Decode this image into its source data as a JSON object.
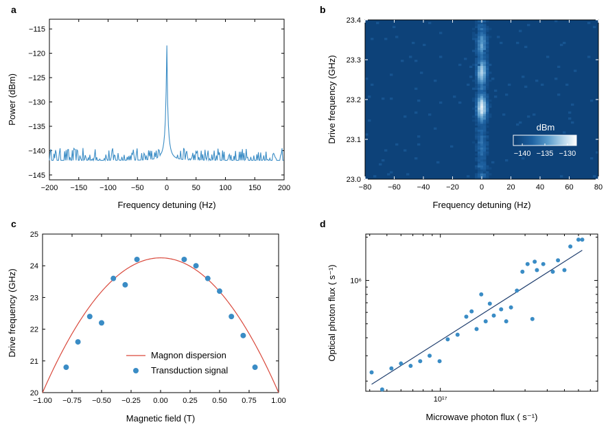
{
  "chart_data": [
    {
      "panel": "a",
      "type": "line",
      "xlabel": "Frequency detuning (Hz)",
      "ylabel": "Power (dBm)",
      "xlim": [
        -200,
        200
      ],
      "ylim": [
        -146,
        -113
      ],
      "xticks": [
        -200,
        -150,
        -100,
        -50,
        0,
        50,
        100,
        150,
        200
      ],
      "yticks": [
        -145,
        -140,
        -135,
        -130,
        -125,
        -120,
        -115
      ],
      "color": "#3a8cc5",
      "series": [
        {
          "peak_center_hz": 0,
          "peak_level_dbm": -117.6,
          "noise_floor_dbm": -142,
          "noise_amplitude_db": 1.6
        }
      ]
    },
    {
      "panel": "b",
      "type": "heatmap",
      "xlabel": "Frequency detuning (Hz)",
      "ylabel": "Drive frequency (GHz)",
      "xlim": [
        -80,
        80
      ],
      "ylim": [
        23.0,
        23.4
      ],
      "xticks": [
        -80,
        -60,
        -40,
        -20,
        0,
        20,
        40,
        60,
        80
      ],
      "yticks": [
        23.0,
        23.1,
        23.2,
        23.3,
        23.4
      ],
      "colorbar": {
        "label": "dBm",
        "range": [
          -142,
          -128
        ],
        "ticks": [
          -140,
          -135,
          -130
        ],
        "placement": "lower-right"
      },
      "signal_center_hz": 0,
      "signal_width_hz": 3.5,
      "signal_peaks": [
        {
          "freq_ghz": 23.18,
          "level_dbm": -129
        },
        {
          "freq_ghz": 23.27,
          "level_dbm": -131
        },
        {
          "freq_ghz": 23.34,
          "level_dbm": -134
        },
        {
          "freq_ghz": 23.08,
          "level_dbm": -137
        }
      ]
    },
    {
      "panel": "c",
      "type": "scatter",
      "xlabel": "Magnetic field (T)",
      "ylabel": "Drive frequency (GHz)",
      "xlim": [
        -1.0,
        1.0
      ],
      "ylim": [
        20,
        25
      ],
      "xticks": [
        -1.0,
        -0.75,
        -0.5,
        -0.25,
        0.0,
        0.25,
        0.5,
        0.75,
        1.0
      ],
      "yticks": [
        20,
        21,
        22,
        23,
        24,
        25
      ],
      "legend": {
        "placement": "lower-center"
      },
      "series": [
        {
          "name": "Magnon dispersion",
          "kind": "line",
          "color": "#d9483b",
          "vertex_ghz": 24.25,
          "curvature": 4.25
        },
        {
          "name": "Transduction signal",
          "kind": "scatter",
          "color": "#3a8cc5",
          "x": [
            -0.8,
            -0.7,
            -0.6,
            -0.5,
            -0.4,
            -0.3,
            -0.2,
            0.2,
            0.3,
            0.4,
            0.5,
            0.6,
            0.7,
            0.8
          ],
          "y": [
            20.8,
            21.6,
            22.4,
            22.2,
            23.6,
            23.4,
            24.2,
            24.2,
            24.0,
            23.6,
            23.2,
            22.4,
            21.8,
            20.8
          ]
        }
      ]
    },
    {
      "panel": "d",
      "type": "scatter",
      "xlabel": "Microwave photon flux ( s⁻¹)",
      "ylabel": "Optical photon flux ( s⁻¹)",
      "xscale": "log",
      "yscale": "log",
      "xlim": [
        3.8e+16,
        7.7e+17
      ],
      "ylim": [
        170000.0,
        2100000.0
      ],
      "xticks": [
        1e+17
      ],
      "xtick_labels": [
        "10¹⁷"
      ],
      "yticks": [
        1000000.0
      ],
      "ytick_labels": [
        "10⁶"
      ],
      "series": [
        {
          "name": "",
          "kind": "scatter",
          "color": "#3a8cc5",
          "x": [
            4.1e+16,
            4.7e+16,
            5.3e+16,
            6e+16,
            6.8e+16,
            7.7e+16,
            8.7e+16,
            9.9e+16,
            1.1e+17,
            1.25e+17,
            1.4e+17,
            1.5e+17,
            1.6e+17,
            1.7e+17,
            1.8e+17,
            1.9e+17,
            2e+17,
            2.2e+17,
            2.35e+17,
            2.5e+17,
            2.7e+17,
            2.9e+17,
            3.1e+17,
            3.3e+17,
            3.4e+17,
            3.5e+17,
            3.8e+17,
            4.3e+17,
            4.6e+17,
            5e+17,
            5.4e+17,
            6e+17,
            6.3e+17
          ],
          "y": [
            230000.0,
            175000.0,
            245000.0,
            265000.0,
            255000.0,
            275000.0,
            300000.0,
            275000.0,
            390000.0,
            420000.0,
            560000.0,
            610000.0,
            460000.0,
            800000.0,
            520000.0,
            690000.0,
            570000.0,
            630000.0,
            520000.0,
            650000.0,
            850000.0,
            1150000.0,
            1300000.0,
            540000.0,
            1350000.0,
            1180000.0,
            1300000.0,
            1150000.0,
            1380000.0,
            1180000.0,
            1720000.0,
            1920000.0,
            1920000.0
          ]
        },
        {
          "name": "",
          "kind": "line",
          "color": "#1f3e6e",
          "x": [
            4.1e+16,
            6.3e+17
          ],
          "y": [
            190000.0,
            1620000.0
          ]
        }
      ]
    }
  ]
}
